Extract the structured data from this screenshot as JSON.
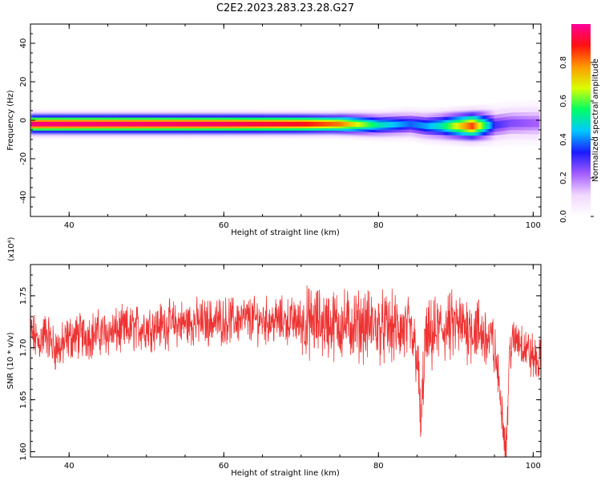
{
  "title": "C2E2.2023.283.23.28.G27",
  "colors": {
    "snr_line": "#ee3333",
    "colormap": [
      "#ffffff",
      "#f2d8ff",
      "#a35cff",
      "#1a1aff",
      "#00c8ff",
      "#00ff66",
      "#d9ff00",
      "#ff9900",
      "#ff1111",
      "#ff0099"
    ]
  },
  "chart_data": [
    {
      "type": "heatmap",
      "xlabel": "Height of straight line (km)",
      "ylabel": "Frequency (Hz)",
      "xlim": [
        35,
        101
      ],
      "ylim": [
        -50,
        50
      ],
      "x_ticks": [
        40,
        60,
        80,
        100
      ],
      "y_ticks": [
        -40,
        -20,
        0,
        20,
        40
      ],
      "colorbar": {
        "label": "Normalized spectral amplitude",
        "range": [
          0.0,
          1.0
        ],
        "ticks": [
          "0.0",
          "0.2",
          "0.4",
          "0.6",
          "0.8"
        ],
        "tick_values": [
          0.0,
          0.2,
          0.4,
          0.6,
          0.8
        ]
      },
      "ridge": {
        "description_points_height_km": [
          35,
          50,
          60,
          70,
          75,
          80,
          84,
          86,
          88,
          92,
          95,
          97,
          100
        ],
        "center_frequency_hz": [
          -2,
          -2,
          -2,
          -2,
          -2,
          -2.5,
          -2,
          -3,
          -3,
          -3,
          -2.5,
          -1.5,
          -1.5
        ],
        "peak_amplitude": [
          0.97,
          0.96,
          0.95,
          0.9,
          0.8,
          0.5,
          0.38,
          0.42,
          0.5,
          0.85,
          0.3,
          0.25,
          0.22
        ]
      }
    },
    {
      "type": "line",
      "xlabel": "Height of straight line (km)",
      "ylabel": "SNR (10 * v/v)",
      "y_multiplier": "(x10⁴)",
      "xlim": [
        35,
        101
      ],
      "ylim": [
        1.595,
        1.78
      ],
      "x_ticks": [
        40,
        60,
        80,
        100
      ],
      "y_ticks": [
        "1.60",
        "1.65",
        "1.70",
        "1.75"
      ],
      "y_tick_values": [
        1.6,
        1.65,
        1.7,
        1.75
      ],
      "series": [
        {
          "x": [
            35,
            36,
            37,
            38,
            39,
            40,
            42,
            44,
            46,
            48,
            50,
            52,
            54,
            56,
            58,
            60,
            62,
            64,
            66,
            68,
            70,
            72,
            74,
            76,
            78,
            80,
            82,
            84,
            85,
            85.5,
            86,
            88,
            90,
            92,
            94,
            95,
            96,
            96.5,
            97,
            98,
            99,
            100,
            101
          ],
          "values": [
            1.715,
            1.705,
            1.715,
            1.7,
            1.7,
            1.71,
            1.712,
            1.714,
            1.715,
            1.718,
            1.72,
            1.722,
            1.723,
            1.724,
            1.725,
            1.726,
            1.727,
            1.727,
            1.726,
            1.726,
            1.725,
            1.724,
            1.723,
            1.722,
            1.722,
            1.72,
            1.718,
            1.715,
            1.695,
            1.62,
            1.705,
            1.718,
            1.72,
            1.72,
            1.71,
            1.7,
            1.64,
            1.6,
            1.7,
            1.71,
            1.7,
            1.69,
            1.685
          ]
        }
      ]
    }
  ]
}
